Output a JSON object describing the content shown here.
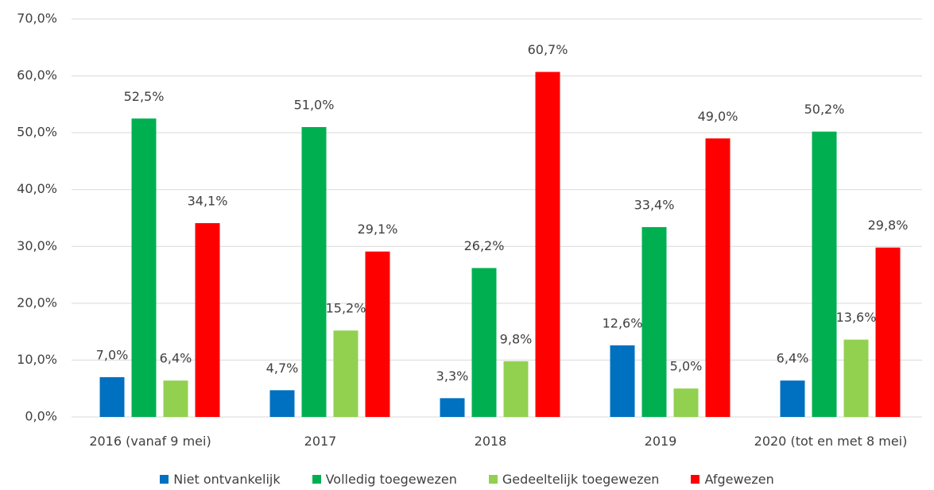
{
  "chart_data": {
    "type": "bar",
    "categories": [
      "2016 (vanaf 9 mei)",
      "2017",
      "2018",
      "2019",
      "2020 (tot en met 8 mei)"
    ],
    "series": [
      {
        "name": "Niet ontvankelijk",
        "color": "#0070c0",
        "values": [
          7.0,
          4.7,
          3.3,
          12.6,
          6.4
        ],
        "value_labels": [
          "7,0%",
          "4,7%",
          "3,3%",
          "12,6%",
          "6,4%"
        ]
      },
      {
        "name": "Volledig toegewezen",
        "color": "#00b050",
        "values": [
          52.5,
          51.0,
          26.2,
          33.4,
          50.2
        ],
        "value_labels": [
          "52,5%",
          "51,0%",
          "26,2%",
          "33,4%",
          "50,2%"
        ]
      },
      {
        "name": "Gedeeltelijk toegewezen",
        "color": "#92d050",
        "values": [
          6.4,
          15.2,
          9.8,
          5.0,
          13.6
        ],
        "value_labels": [
          "6,4%",
          "15,2%",
          "9,8%",
          "5,0%",
          "13,6%"
        ]
      },
      {
        "name": "Afgewezen",
        "color": "#ff0000",
        "values": [
          34.1,
          29.1,
          60.7,
          49.0,
          29.8
        ],
        "value_labels": [
          "34,1%",
          "29,1%",
          "60,7%",
          "49,0%",
          "29,8%"
        ]
      }
    ],
    "ylim": [
      0,
      70
    ],
    "yticks": [
      {
        "value": 0,
        "label": "0,0%"
      },
      {
        "value": 10,
        "label": "10,0%"
      },
      {
        "value": 20,
        "label": "20,0%"
      },
      {
        "value": 30,
        "label": "30,0%"
      },
      {
        "value": 40,
        "label": "40,0%"
      },
      {
        "value": 50,
        "label": "50,0%"
      },
      {
        "value": 60,
        "label": "60,0%"
      },
      {
        "value": 70,
        "label": "70,0%"
      }
    ],
    "grid": true,
    "legend": "bottom"
  }
}
